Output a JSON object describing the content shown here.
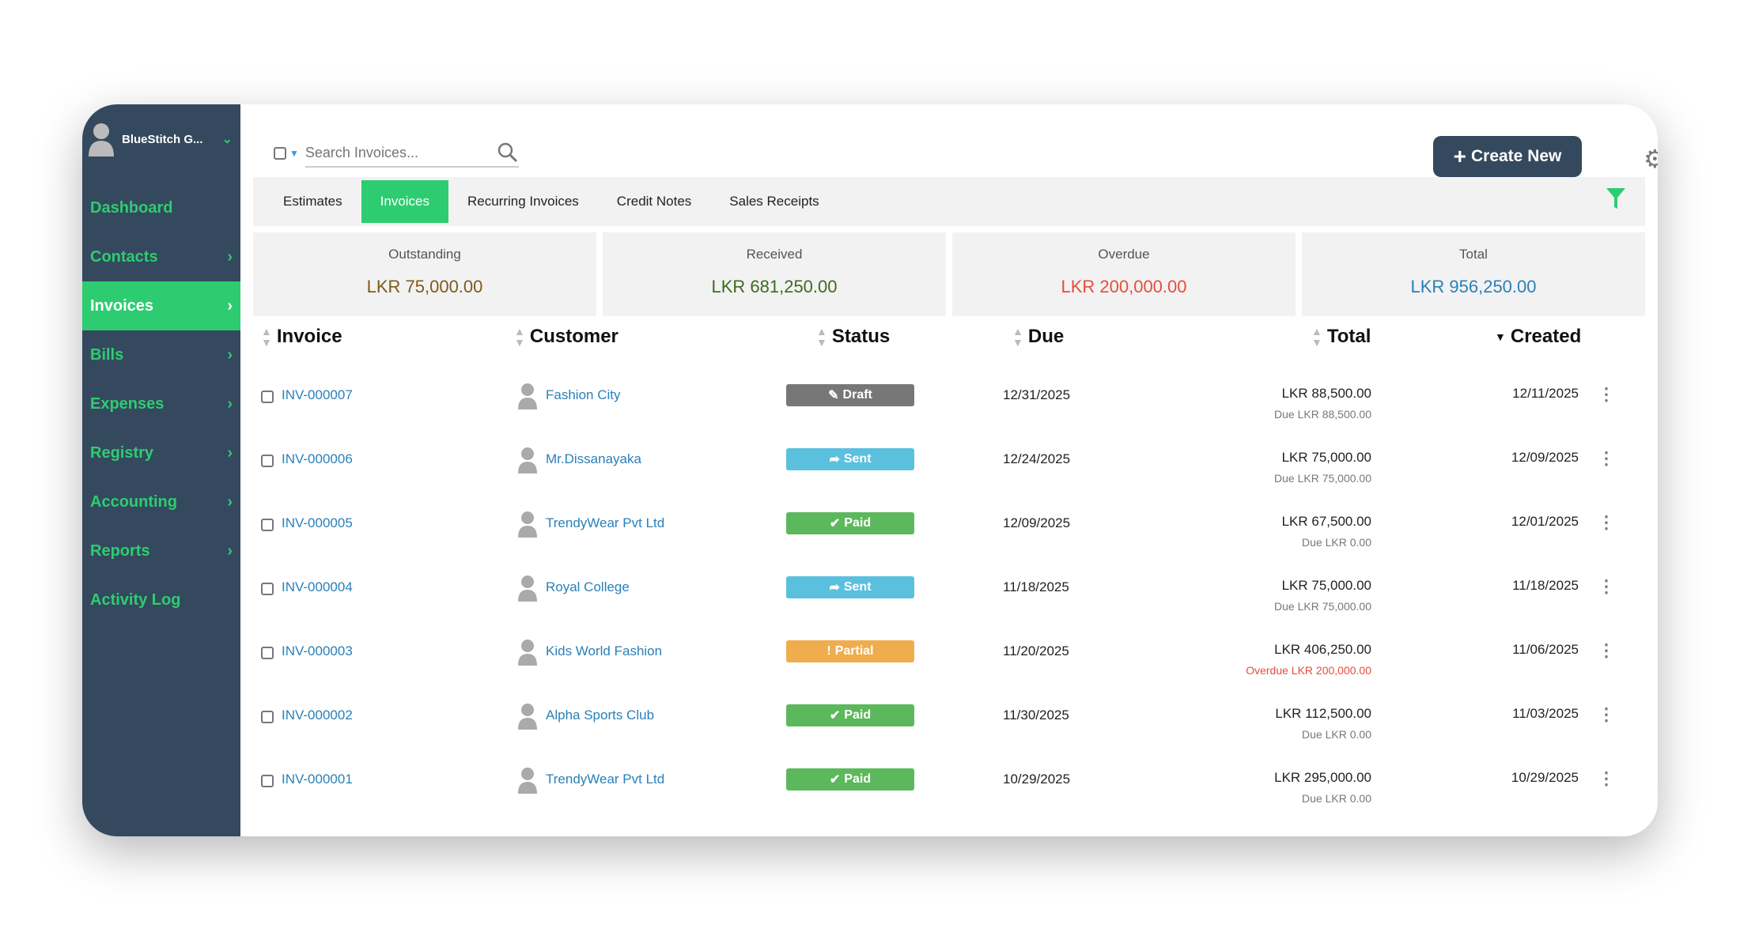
{
  "sidebar": {
    "org_name": "BlueStitch G...",
    "items": [
      {
        "label": "Dashboard",
        "arrow": false
      },
      {
        "label": "Contacts",
        "arrow": true
      },
      {
        "label": "Invoices",
        "arrow": true,
        "active": true
      },
      {
        "label": "Bills",
        "arrow": true
      },
      {
        "label": "Expenses",
        "arrow": true
      },
      {
        "label": "Registry",
        "arrow": true
      },
      {
        "label": "Accounting",
        "arrow": true
      },
      {
        "label": "Reports",
        "arrow": true
      },
      {
        "label": "Activity Log",
        "arrow": false
      }
    ]
  },
  "topbar": {
    "search_placeholder": "Search Invoices...",
    "create_label": "Create New"
  },
  "tabs": [
    {
      "label": "Estimates"
    },
    {
      "label": "Invoices",
      "active": true
    },
    {
      "label": "Recurring Invoices"
    },
    {
      "label": "Credit Notes"
    },
    {
      "label": "Sales Receipts"
    }
  ],
  "summary": [
    {
      "label": "Outstanding",
      "value": "LKR 75,000.00",
      "color": "#7d5a1a"
    },
    {
      "label": "Received",
      "value": "LKR 681,250.00",
      "color": "#3d6b1f"
    },
    {
      "label": "Overdue",
      "value": "LKR 200,000.00",
      "color": "#e74c3c"
    },
    {
      "label": "Total",
      "value": "LKR 956,250.00",
      "color": "#2980b9"
    }
  ],
  "table": {
    "headers": {
      "invoice": "Invoice",
      "customer": "Customer",
      "status": "Status",
      "due": "Due",
      "total": "Total",
      "created": "Created"
    },
    "status_colors": {
      "Draft": "#777777",
      "Sent": "#5bc0de",
      "Paid": "#5cb85c",
      "Partial": "#f0ad4e"
    },
    "rows": [
      {
        "invoice": "INV-000007",
        "customer": "Fashion City",
        "status": "Draft",
        "due": "12/31/2025",
        "total": "LKR 88,500.00",
        "sub": "Due LKR 88,500.00",
        "overdue": false,
        "created": "12/11/2025"
      },
      {
        "invoice": "INV-000006",
        "customer": "Mr.Dissanayaka",
        "status": "Sent",
        "due": "12/24/2025",
        "total": "LKR 75,000.00",
        "sub": "Due LKR 75,000.00",
        "overdue": false,
        "created": "12/09/2025"
      },
      {
        "invoice": "INV-000005",
        "customer": "TrendyWear Pvt Ltd",
        "status": "Paid",
        "due": "12/09/2025",
        "total": "LKR 67,500.00",
        "sub": "Due LKR 0.00",
        "overdue": false,
        "created": "12/01/2025"
      },
      {
        "invoice": "INV-000004",
        "customer": "Royal College",
        "status": "Sent",
        "due": "11/18/2025",
        "total": "LKR 75,000.00",
        "sub": "Due LKR 75,000.00",
        "overdue": false,
        "created": "11/18/2025"
      },
      {
        "invoice": "INV-000003",
        "customer": "Kids World Fashion",
        "status": "Partial",
        "due": "11/20/2025",
        "total": "LKR 406,250.00",
        "sub": "Overdue LKR 200,000.00",
        "overdue": true,
        "created": "11/06/2025"
      },
      {
        "invoice": "INV-000002",
        "customer": "Alpha Sports Club",
        "status": "Paid",
        "due": "11/30/2025",
        "total": "LKR 112,500.00",
        "sub": "Due LKR 0.00",
        "overdue": false,
        "created": "11/03/2025"
      },
      {
        "invoice": "INV-000001",
        "customer": "TrendyWear Pvt Ltd",
        "status": "Paid",
        "due": "10/29/2025",
        "total": "LKR 295,000.00",
        "sub": "Due LKR 0.00",
        "overdue": false,
        "created": "10/29/2025"
      }
    ]
  }
}
